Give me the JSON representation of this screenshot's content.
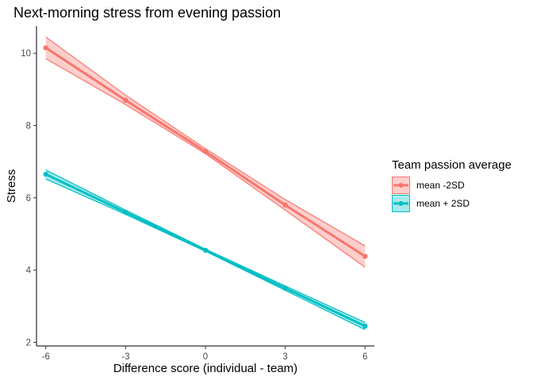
{
  "chart_data": {
    "type": "line",
    "title": "Next-morning stress from evening passion",
    "xlabel": "Difference score (individual - team)",
    "ylabel": "Stress",
    "xlim": [
      -6.35,
      6.35
    ],
    "ylim": [
      1.9,
      10.75
    ],
    "x_ticks": [
      -6,
      -3,
      0,
      3,
      6
    ],
    "x_tick_labels": [
      "-6",
      "-3",
      "0",
      "3",
      "6"
    ],
    "y_ticks": [
      2,
      4,
      6,
      8,
      10
    ],
    "y_tick_labels": [
      "2",
      "4",
      "6",
      "8",
      "10"
    ],
    "grid": false,
    "legend": {
      "title": "Team passion average",
      "placement": "right"
    },
    "series": [
      {
        "name": "mean -2SD",
        "color": "#F8766D",
        "x": [
          -6,
          -3,
          0,
          3,
          6
        ],
        "y": [
          10.15,
          8.7,
          7.28,
          5.8,
          4.38
        ],
        "ribbon_lower": [
          9.85,
          8.58,
          7.22,
          5.66,
          4.08
        ],
        "ribbon_upper": [
          10.45,
          8.84,
          7.36,
          5.95,
          4.67
        ]
      },
      {
        "name": "mean + 2SD",
        "color": "#00BFC4",
        "x": [
          -6,
          -3,
          0,
          3,
          6
        ],
        "y": [
          6.65,
          5.6,
          4.55,
          3.5,
          2.45
        ],
        "ribbon_lower": [
          6.52,
          5.54,
          4.52,
          3.44,
          2.35
        ],
        "ribbon_upper": [
          6.77,
          5.66,
          4.58,
          3.56,
          2.55
        ]
      }
    ]
  }
}
